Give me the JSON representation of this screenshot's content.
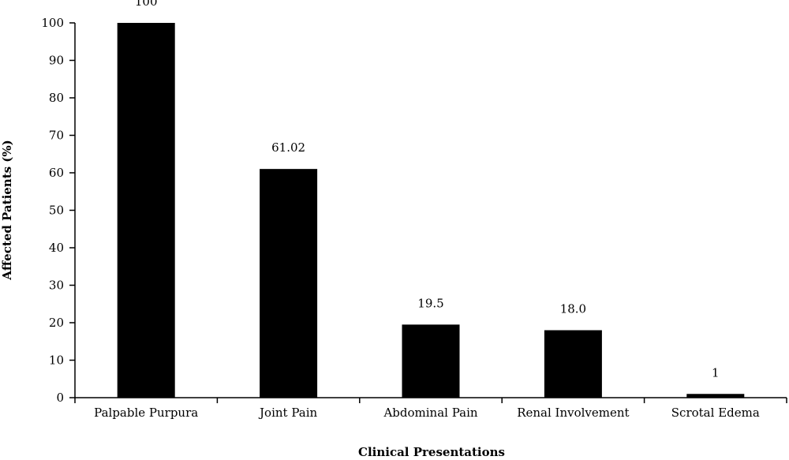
{
  "chart_data": {
    "type": "bar",
    "categories": [
      "Palpable Purpura",
      "Joint Pain",
      "Abdominal Pain",
      "Renal Involvement",
      "Scrotal Edema"
    ],
    "values": [
      100,
      61.02,
      19.5,
      18.0,
      1
    ],
    "data_labels": [
      "100",
      "61.02",
      "19.5",
      "18.0",
      "1"
    ],
    "xlabel": "Clinical Presentations",
    "ylabel": "Affected Patients (%)",
    "ylim": [
      0,
      100
    ],
    "yticks": [
      0,
      10,
      20,
      30,
      40,
      50,
      60,
      70,
      80,
      90,
      100
    ],
    "bar_color": "#000000",
    "grid": false,
    "legend": "none"
  }
}
